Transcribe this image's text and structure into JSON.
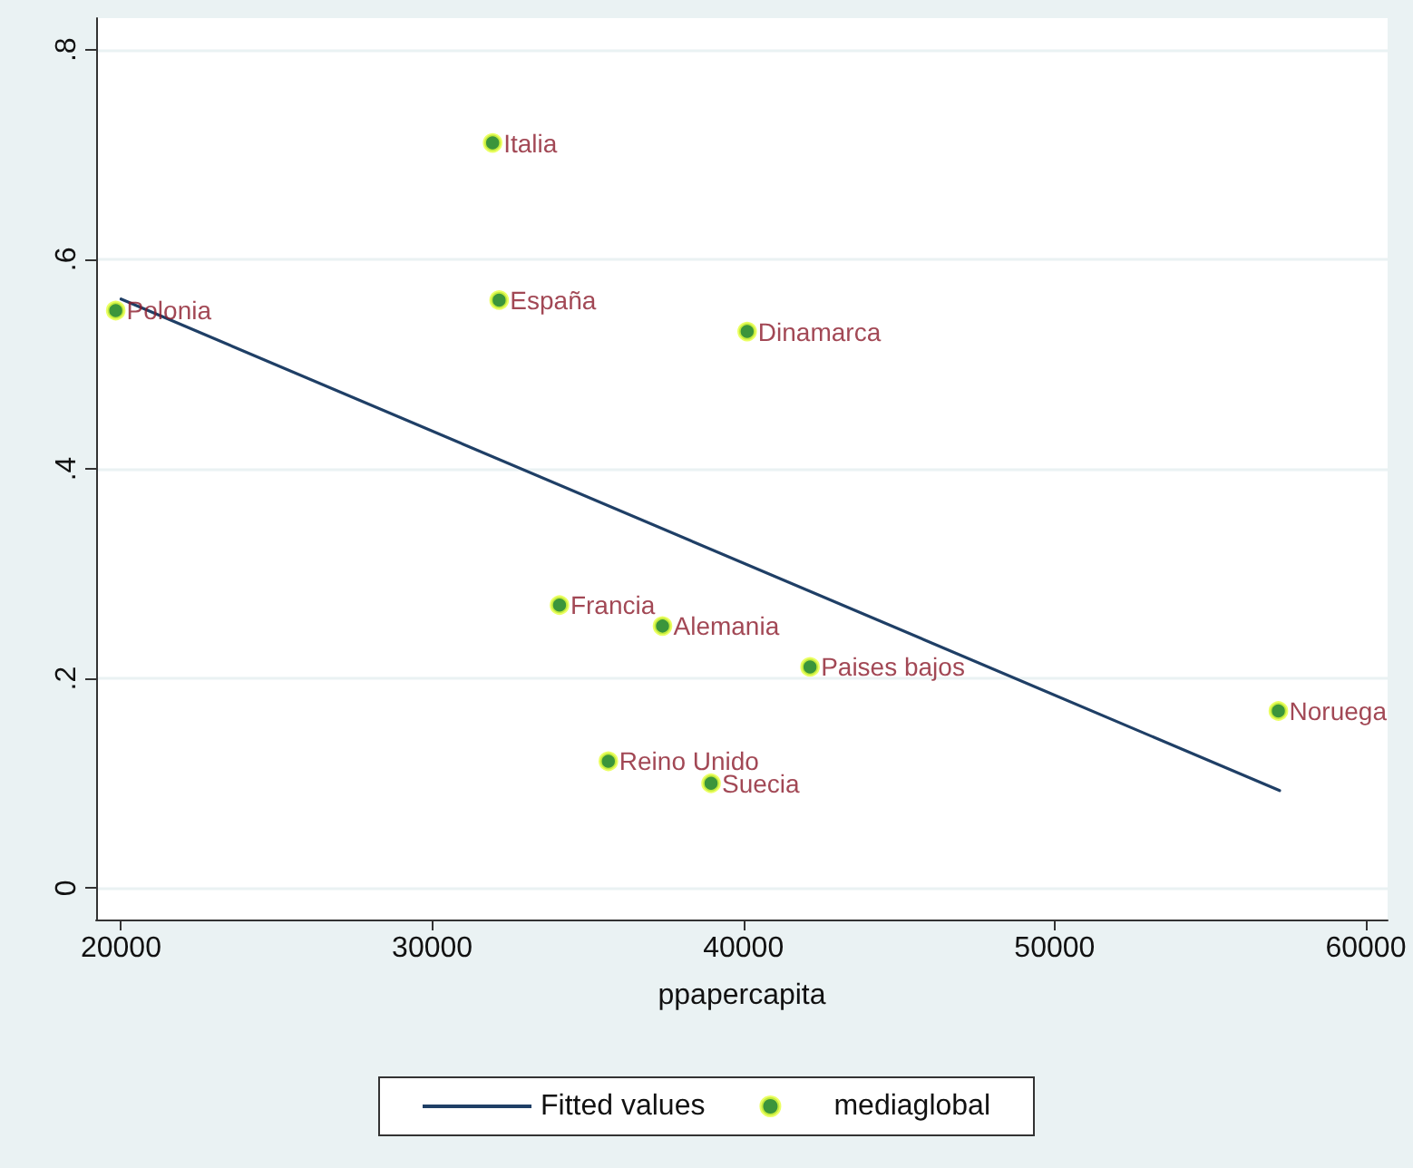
{
  "chart_data": {
    "type": "scatter",
    "xlabel": "ppapercapita",
    "xlim": [
      19200,
      60700
    ],
    "xticks": [
      20000,
      30000,
      40000,
      50000,
      60000
    ],
    "ylim": [
      -0.03,
      0.83
    ],
    "yticks": [
      {
        "value": 0,
        "label": "0"
      },
      {
        "value": 0.2,
        "label": ".2"
      },
      {
        "value": 0.4,
        "label": ".4"
      },
      {
        "value": 0.6,
        "label": ".6"
      },
      {
        "value": 0.8,
        "label": ".8"
      }
    ],
    "grid": "y",
    "legend": "bottom",
    "series": [
      {
        "name": "Fitted values",
        "type": "line",
        "marker": "none",
        "color": "#1f3f66",
        "x": [
          20000,
          57230
        ],
        "values": [
          0.562,
          0.093
        ]
      },
      {
        "name": "mediaglobal",
        "marker": "circle",
        "color": "#0a7a0a",
        "x": [
          19830,
          31940,
          32150,
          40120,
          34090,
          37400,
          42140,
          57190,
          35660,
          38960
        ],
        "values": [
          0.551,
          0.711,
          0.561,
          0.531,
          0.27,
          0.25,
          0.211,
          0.169,
          0.121,
          0.1
        ]
      }
    ],
    "annotations": [
      {
        "text": "Polonia",
        "x": 19830,
        "y": 0.551
      },
      {
        "text": "Italia",
        "x": 31940,
        "y": 0.711
      },
      {
        "text": "España",
        "x": 32150,
        "y": 0.561
      },
      {
        "text": "Dinamarca",
        "x": 40120,
        "y": 0.531
      },
      {
        "text": "Francia",
        "x": 34090,
        "y": 0.27
      },
      {
        "text": "Alemania",
        "x": 37400,
        "y": 0.25
      },
      {
        "text": "Paises bajos",
        "x": 42140,
        "y": 0.211
      },
      {
        "text": "Noruega",
        "x": 57190,
        "y": 0.169
      },
      {
        "text": "Reino Unido",
        "x": 35660,
        "y": 0.121
      },
      {
        "text": "Suecia",
        "x": 38960,
        "y": 0.1
      }
    ]
  }
}
